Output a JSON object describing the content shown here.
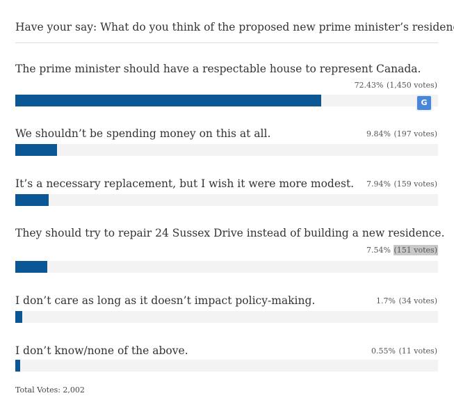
{
  "poll": {
    "question": "Have your say: What do you think of the proposed new prime minister’s residence?",
    "total_votes": "Total Votes: 2,002",
    "bar_color": "#0b5795",
    "options": [
      {
        "label": "The prime minister should have a respectable house to represent Canada.",
        "percent_text": "72.43%",
        "votes_text": "(1,450 votes)",
        "percent": 72.43
      },
      {
        "label": "We shouldn’t be spending money on this at all.",
        "percent_text": "9.84%",
        "votes_text": "(197 votes)",
        "percent": 9.84
      },
      {
        "label": "It’s a necessary replacement, but I wish it were more modest.",
        "percent_text": "7.94%",
        "votes_text": "(159 votes)",
        "percent": 7.94
      },
      {
        "label": "They should try to repair 24 Sussex Drive instead of building a new residence.",
        "percent_text": "7.54%",
        "votes_text": "(151 votes)",
        "percent": 7.54
      },
      {
        "label": "I don’t care as long as it doesn’t impact policy-making.",
        "percent_text": "1.7%",
        "votes_text": "(34 votes)",
        "percent": 1.7
      },
      {
        "label": "I don’t know/none of the above.",
        "percent_text": "0.55%",
        "votes_text": "(11 votes)",
        "percent": 0.55
      }
    ]
  },
  "overlay": {
    "translate_icon": "google-translate-icon",
    "translate_glyph": "G"
  }
}
